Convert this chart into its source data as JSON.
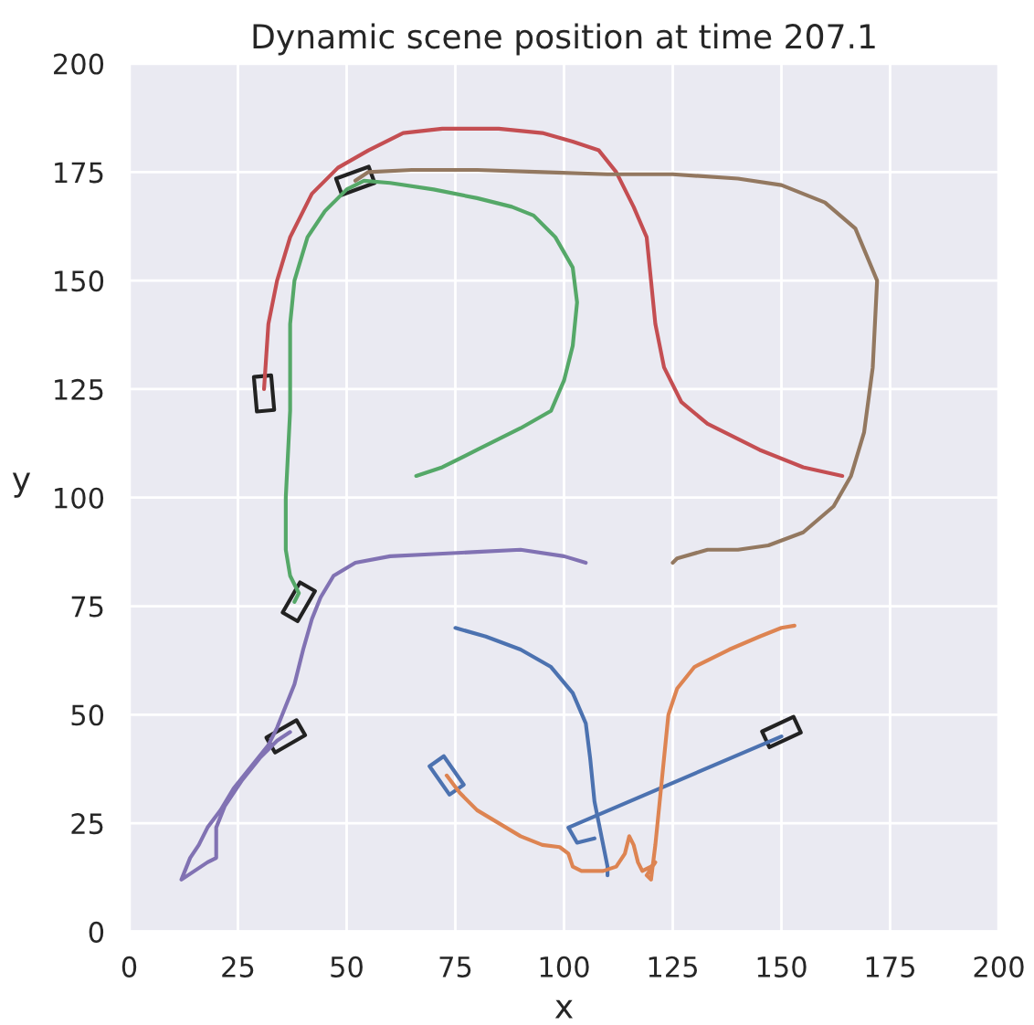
{
  "chart_data": {
    "type": "line",
    "title": "Dynamic scene position at time 207.1",
    "xlabel": "x",
    "ylabel": "y",
    "xlim": [
      0,
      200
    ],
    "ylim": [
      0,
      200
    ],
    "xticks": [
      0,
      25,
      50,
      75,
      100,
      125,
      150,
      175,
      200
    ],
    "yticks": [
      0,
      25,
      50,
      75,
      100,
      125,
      150,
      175,
      200
    ],
    "grid": true,
    "line_style": "solid",
    "series": [
      {
        "color": "#c44e52",
        "x": [
          31,
          32,
          34,
          37,
          42,
          48,
          55,
          63,
          72,
          85,
          95,
          102,
          108,
          112,
          116,
          119,
          120,
          121,
          123,
          127,
          133,
          145,
          155,
          164
        ],
        "values": [
          125,
          140,
          150,
          160,
          170,
          176,
          180,
          184,
          185,
          185,
          184,
          182,
          180,
          175,
          167,
          160,
          150,
          140,
          130,
          122,
          117,
          111,
          107,
          105
        ]
      },
      {
        "color": "#937860",
        "x": [
          52,
          55,
          65,
          80,
          95,
          110,
          125,
          140,
          150,
          160,
          167,
          172,
          171,
          169,
          166,
          162,
          155,
          147,
          140,
          133,
          126,
          125
        ],
        "values": [
          173,
          175,
          175.5,
          175.5,
          175,
          174.5,
          174.5,
          173.5,
          172,
          168,
          162,
          150,
          130,
          115,
          105,
          98,
          92,
          89,
          88,
          88,
          86,
          85
        ]
      },
      {
        "color": "#55a868",
        "x": [
          38,
          39,
          37,
          36,
          36,
          37,
          37,
          38,
          41,
          45,
          50,
          54,
          60,
          70,
          80,
          88,
          93,
          98,
          102,
          103,
          102,
          100,
          97,
          90,
          80,
          72,
          66
        ],
        "values": [
          76,
          78,
          82,
          88,
          100,
          120,
          140,
          150,
          160,
          166,
          171,
          173,
          172.5,
          171,
          169,
          167,
          165,
          160,
          153,
          145,
          135,
          127,
          120,
          116,
          111,
          107,
          105
        ]
      },
      {
        "color": "#8172b3",
        "x": [
          105,
          100,
          90,
          80,
          70,
          60,
          52,
          47,
          44,
          42,
          40,
          38,
          36,
          34,
          32,
          28,
          24,
          21,
          18,
          16,
          14,
          12,
          15,
          18,
          20,
          20,
          22,
          26,
          30,
          34,
          37
        ],
        "values": [
          85,
          86.5,
          88,
          87.5,
          87,
          86.5,
          85,
          82,
          77,
          72,
          65,
          57,
          52,
          47,
          43,
          38,
          33,
          28,
          24,
          20,
          17,
          12,
          14,
          16,
          17,
          24,
          29,
          35,
          40,
          44,
          46
        ]
      },
      {
        "color": "#4c72b0",
        "x": [
          75,
          82,
          90,
          97,
          102,
          105,
          106,
          107,
          108,
          109,
          110,
          110
        ],
        "values": [
          70,
          68,
          65,
          61,
          55,
          48,
          40,
          30,
          25,
          20,
          15,
          13
        ]
      },
      {
        "color": "#4c72b0",
        "x": [
          150,
          101,
          103,
          107
        ],
        "values": [
          45,
          24,
          20.5,
          21.5
        ]
      },
      {
        "color": "#dd8452",
        "x": [
          73,
          76,
          80,
          85,
          90,
          95,
          99,
          101,
          102,
          104,
          109,
          112,
          114,
          115,
          116,
          117,
          118,
          120,
          121,
          119,
          120,
          121,
          122,
          123,
          124,
          126,
          130,
          138,
          145,
          150,
          153
        ],
        "values": [
          36,
          32,
          28,
          25,
          22,
          20,
          19.5,
          18,
          15,
          14,
          14,
          15,
          18,
          22,
          20,
          16,
          14,
          15,
          16,
          13,
          12,
          20,
          30,
          40,
          50,
          56,
          61,
          65,
          68,
          70,
          70.5
        ]
      }
    ]
  }
}
